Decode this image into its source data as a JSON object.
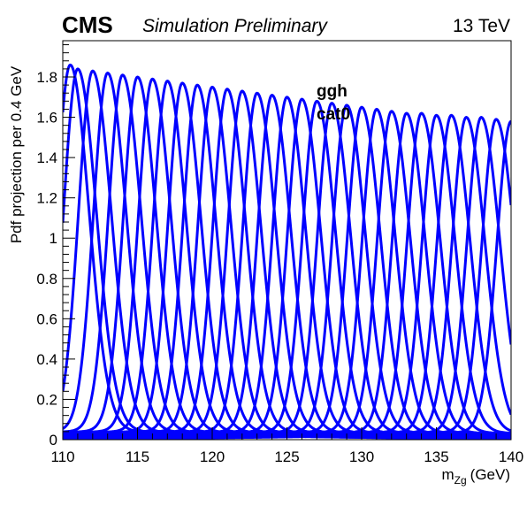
{
  "header": {
    "experiment": "CMS",
    "status": "Simulation Preliminary",
    "energy": "13 TeV"
  },
  "annotations": [
    "ggh",
    "cat0"
  ],
  "chart_data": {
    "type": "line",
    "title": "",
    "xlabel_main": "m",
    "xlabel_sub": "Zg",
    "xlabel_unit": "(GeV)",
    "ylabel": "Pdf projection per 0.4 GeV",
    "xlim": [
      110,
      140
    ],
    "ylim": [
      0,
      1.98
    ],
    "xticks": [
      110,
      115,
      120,
      125,
      130,
      135,
      140
    ],
    "yticks": [
      0,
      0.2,
      0.4,
      0.6,
      0.8,
      1,
      1.2,
      1.4,
      1.6,
      1.8
    ],
    "grid": false,
    "line_color": "#0000ff",
    "series_shape": "Signal pdf projections, one per mass point",
    "sigma_left": 0.95,
    "sigma_right": 1.25,
    "tail_level": 0.03,
    "series": [
      {
        "mass": 110.5,
        "peak": 1.86
      },
      {
        "mass": 111.0,
        "peak": 1.84
      },
      {
        "mass": 112.0,
        "peak": 1.83
      },
      {
        "mass": 113.0,
        "peak": 1.82
      },
      {
        "mass": 114.0,
        "peak": 1.81
      },
      {
        "mass": 115.0,
        "peak": 1.8
      },
      {
        "mass": 116.0,
        "peak": 1.79
      },
      {
        "mass": 117.0,
        "peak": 1.78
      },
      {
        "mass": 118.0,
        "peak": 1.77
      },
      {
        "mass": 119.0,
        "peak": 1.76
      },
      {
        "mass": 120.0,
        "peak": 1.75
      },
      {
        "mass": 121.0,
        "peak": 1.74
      },
      {
        "mass": 122.0,
        "peak": 1.73
      },
      {
        "mass": 123.0,
        "peak": 1.72
      },
      {
        "mass": 124.0,
        "peak": 1.71
      },
      {
        "mass": 125.0,
        "peak": 1.7
      },
      {
        "mass": 126.0,
        "peak": 1.69
      },
      {
        "mass": 127.0,
        "peak": 1.68
      },
      {
        "mass": 128.0,
        "peak": 1.67
      },
      {
        "mass": 129.0,
        "peak": 1.66
      },
      {
        "mass": 130.0,
        "peak": 1.65
      },
      {
        "mass": 131.0,
        "peak": 1.64
      },
      {
        "mass": 132.0,
        "peak": 1.63
      },
      {
        "mass": 133.0,
        "peak": 1.62
      },
      {
        "mass": 134.0,
        "peak": 1.62
      },
      {
        "mass": 135.0,
        "peak": 1.61
      },
      {
        "mass": 136.0,
        "peak": 1.61
      },
      {
        "mass": 137.0,
        "peak": 1.6
      },
      {
        "mass": 138.0,
        "peak": 1.6
      },
      {
        "mass": 139.0,
        "peak": 1.59
      },
      {
        "mass": 140.0,
        "peak": 1.58
      }
    ]
  }
}
